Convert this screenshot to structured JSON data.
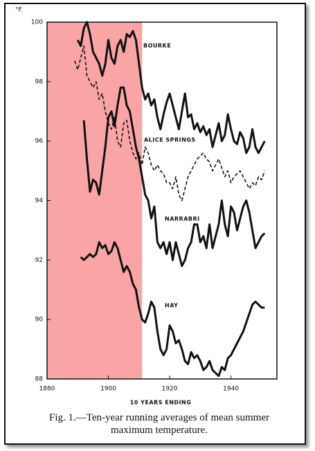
{
  "chart_data": {
    "type": "line",
    "y_unit_label": "°F.",
    "xlabel": "10 YEARS ENDING",
    "caption": "Fig. 1.—Ten-year running averages of mean summer maximum temperature.",
    "xlim": [
      1880,
      1955
    ],
    "xticks": [
      1880,
      1900,
      1920,
      1940
    ],
    "ylim": [
      88,
      100
    ],
    "yticks": [
      88,
      90,
      92,
      94,
      96,
      98,
      100
    ],
    "highlight_xlim": [
      1880,
      1911
    ],
    "highlight_color": "#f9a5a5",
    "x": [
      1889,
      1890,
      1891,
      1892,
      1893,
      1894,
      1895,
      1896,
      1897,
      1898,
      1899,
      1900,
      1901,
      1902,
      1903,
      1904,
      1905,
      1906,
      1907,
      1908,
      1909,
      1910,
      1911,
      1912,
      1913,
      1914,
      1915,
      1916,
      1917,
      1918,
      1919,
      1920,
      1921,
      1922,
      1923,
      1924,
      1925,
      1926,
      1927,
      1928,
      1929,
      1930,
      1931,
      1932,
      1933,
      1934,
      1935,
      1936,
      1937,
      1938,
      1939,
      1940,
      1941,
      1942,
      1943,
      1944,
      1945,
      1946,
      1947,
      1948,
      1949,
      1950,
      1951
    ],
    "series": [
      {
        "name": "BOURKE",
        "color": "#111111",
        "line_style": "solid",
        "values": [
          null,
          99.4,
          99.2,
          99.8,
          100.0,
          99.6,
          99.0,
          98.8,
          98.6,
          98.2,
          98.6,
          99.4,
          98.8,
          98.6,
          99.2,
          99.4,
          99.0,
          99.6,
          99.5,
          99.7,
          99.4,
          98.6,
          97.8,
          97.4,
          97.6,
          97.2,
          97.4,
          96.8,
          96.4,
          96.9,
          97.3,
          97.6,
          97.2,
          96.8,
          96.4,
          97.0,
          97.6,
          96.8,
          96.9,
          96.4,
          96.6,
          96.3,
          96.5,
          96.2,
          96.4,
          95.8,
          96.2,
          96.6,
          96.0,
          96.2,
          96.9,
          96.4,
          96.0,
          95.9,
          96.3,
          96.1,
          95.6,
          95.8,
          96.4,
          95.8,
          95.6,
          95.8,
          96.0
        ]
      },
      {
        "name": "ALICE SPRINGS",
        "color": "#111111",
        "line_style": "dashed",
        "values": [
          98.7,
          98.4,
          98.8,
          99.2,
          98.2,
          98.0,
          97.8,
          98.0,
          97.4,
          97.6,
          97.0,
          96.6,
          96.4,
          96.8,
          96.0,
          95.8,
          96.6,
          96.7,
          96.0,
          95.6,
          95.4,
          95.6,
          95.2,
          95.8,
          95.6,
          95.2,
          95.0,
          95.2,
          95.0,
          94.9,
          94.6,
          94.6,
          94.4,
          94.8,
          94.2,
          94.0,
          94.4,
          94.8,
          95.0,
          95.2,
          95.4,
          95.5,
          95.6,
          95.4,
          95.3,
          95.0,
          95.2,
          95.4,
          95.1,
          94.8,
          95.0,
          94.6,
          94.8,
          94.9,
          95.0,
          94.8,
          94.6,
          94.4,
          94.6,
          94.5,
          94.8,
          94.7,
          95.0
        ]
      },
      {
        "name": "NARRABRI",
        "color": "#111111",
        "line_style": "solid",
        "values": [
          null,
          null,
          null,
          96.7,
          95.4,
          94.3,
          94.7,
          94.6,
          94.2,
          95.0,
          95.8,
          96.8,
          97.0,
          96.5,
          97.2,
          97.8,
          97.8,
          97.2,
          97.0,
          96.4,
          95.8,
          95.4,
          94.8,
          94.2,
          94.0,
          93.4,
          93.8,
          92.6,
          92.4,
          92.6,
          92.2,
          92.6,
          92.0,
          92.6,
          92.2,
          91.8,
          92.0,
          92.4,
          92.6,
          93.2,
          93.2,
          92.6,
          92.8,
          92.4,
          93.2,
          92.4,
          92.8,
          93.2,
          94.0,
          93.2,
          92.8,
          93.8,
          93.6,
          93.0,
          93.4,
          93.8,
          94.0,
          93.6,
          93.0,
          92.4,
          92.6,
          92.8,
          92.9
        ]
      },
      {
        "name": "HAY",
        "color": "#111111",
        "line_style": "solid",
        "values": [
          null,
          null,
          92.1,
          92.0,
          92.1,
          92.2,
          92.1,
          92.2,
          92.6,
          92.4,
          92.5,
          92.2,
          92.3,
          92.6,
          92.4,
          92.0,
          91.6,
          91.8,
          91.6,
          91.2,
          91.0,
          90.4,
          90.0,
          89.9,
          90.2,
          90.6,
          90.4,
          89.6,
          89.0,
          88.8,
          89.0,
          89.8,
          89.6,
          89.2,
          89.3,
          89.0,
          88.6,
          88.5,
          88.9,
          88.7,
          88.8,
          88.6,
          88.3,
          88.4,
          88.6,
          88.3,
          88.2,
          88.1,
          88.4,
          88.3,
          88.7,
          88.8,
          89.0,
          89.2,
          89.4,
          89.6,
          89.9,
          90.2,
          90.5,
          90.6,
          90.5,
          90.4,
          90.4
        ]
      }
    ]
  }
}
